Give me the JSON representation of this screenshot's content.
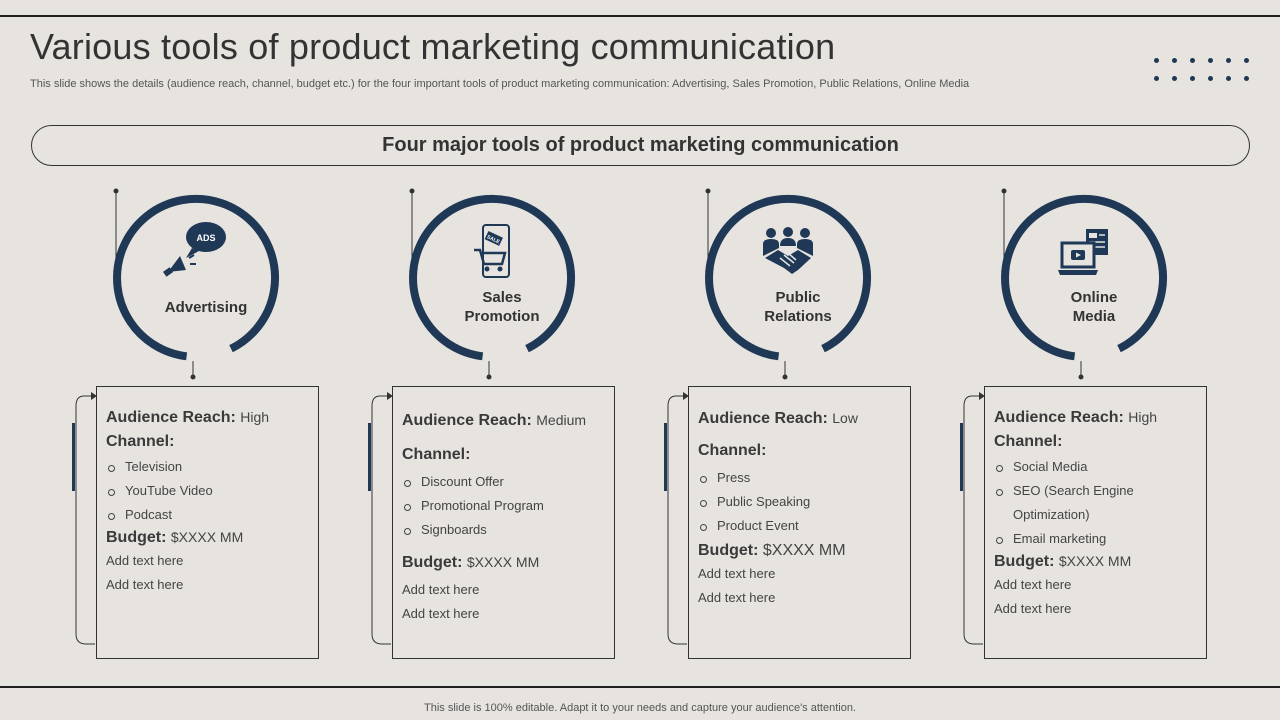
{
  "header": {
    "title": "Various tools of product marketing communication",
    "subtitle": "This slide shows the details (audience reach, channel, budget etc.) for the four important tools of product marketing communication: Advertising, Sales Promotion, Public Relations, Online Media"
  },
  "banner": {
    "text": "Four major tools of product marketing communication"
  },
  "colors": {
    "accent": "#1e3856",
    "background": "#e7e4e0",
    "text": "#333333"
  },
  "tools": [
    {
      "label_line1": "Advertising",
      "label_line2": "",
      "icon": "megaphone-ads-icon",
      "icon_text": "ADS",
      "reach_label": "Audience Reach:",
      "reach_value": "High",
      "channel_label": "Channel:",
      "channels": [
        "Television",
        "YouTube Video",
        "Podcast"
      ],
      "budget_label": "Budget:",
      "budget_value": "$XXXX   MM",
      "notes": [
        "Add text here",
        "Add text here"
      ]
    },
    {
      "label_line1": "Sales",
      "label_line2": "Promotion",
      "icon": "phone-sale-cart-icon",
      "icon_text": "SALE",
      "reach_label": "Audience Reach:",
      "reach_value": "Medium",
      "channel_label": "Channel:",
      "channels": [
        "Discount Offer",
        "Promotional Program",
        "Signboards"
      ],
      "budget_label": "Budget:",
      "budget_value": "$XXXX   MM",
      "notes": [
        "Add text here",
        "Add text here"
      ]
    },
    {
      "label_line1": "Public",
      "label_line2": "Relations",
      "icon": "handshake-group-icon",
      "reach_label": "Audience Reach:",
      "reach_value": "Low",
      "channel_label": "Channel:",
      "channels": [
        "Press",
        "Public Speaking",
        "Product Event"
      ],
      "budget_label": "Budget:",
      "budget_value": "$XXXX MM",
      "notes": [
        "Add text here",
        "Add text here"
      ]
    },
    {
      "label_line1": "Online",
      "label_line2": "Media",
      "icon": "laptop-video-icon",
      "reach_label": "Audience Reach:",
      "reach_value": "High",
      "channel_label": "Channel:",
      "channels": [
        "Social Media",
        "SEO (Search Engine Optimization)",
        "Email marketing"
      ],
      "budget_label": "Budget:",
      "budget_value": "$XXXX   MM",
      "notes": [
        "Add text here",
        "Add text here"
      ]
    }
  ],
  "footer": {
    "text": "This slide is 100% editable. Adapt it to your needs and capture your audience's attention."
  }
}
